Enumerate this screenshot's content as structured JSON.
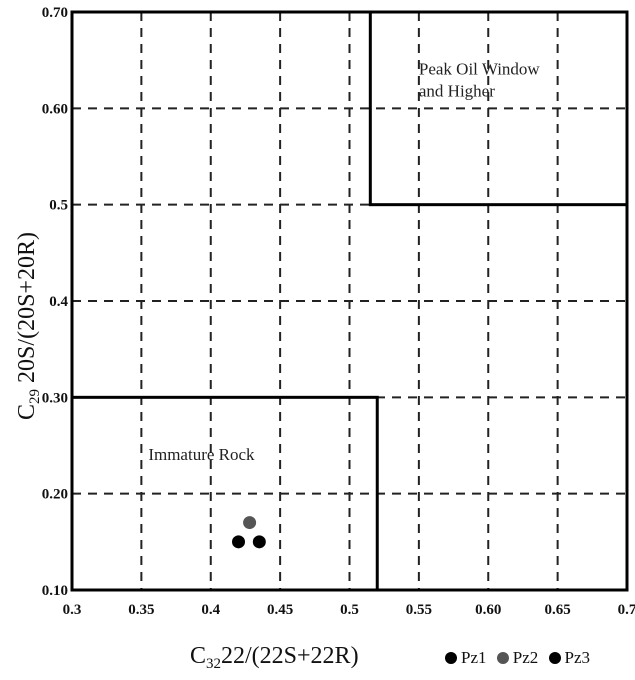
{
  "chart_data": {
    "type": "scatter",
    "title": "",
    "xlabel": {
      "prefix": "C",
      "subscript": "32",
      "text": "22/(22S+22R)"
    },
    "ylabel": {
      "prefix": "C",
      "subscript": "29",
      "text": "20S/(20S+20R)"
    },
    "xlim": [
      0.3,
      0.7
    ],
    "ylim": [
      0.1,
      0.7
    ],
    "x_ticks": [
      0.3,
      0.35,
      0.4,
      0.45,
      0.5,
      0.55,
      0.6,
      0.65,
      0.7
    ],
    "x_tick_labels": [
      "0.3",
      "0.35",
      "0.4",
      "0.45",
      "0.5",
      "0.55",
      "0.60",
      "0.65",
      "0.7"
    ],
    "y_ticks": [
      0.1,
      0.2,
      0.3,
      0.4,
      0.5,
      0.6,
      0.7
    ],
    "y_tick_labels": [
      "0.10",
      "0.20",
      "0.30",
      "0.4",
      "0.5",
      "0.60",
      "0.70"
    ],
    "grid": true,
    "series": [
      {
        "name": "Pz1",
        "color": "#000000",
        "points": [
          [
            0.42,
            0.15
          ]
        ]
      },
      {
        "name": "Pz2",
        "color": "#555555",
        "points": [
          [
            0.428,
            0.17
          ]
        ]
      },
      {
        "name": "Pz3",
        "color": "#000000",
        "points": [
          [
            0.435,
            0.15
          ]
        ]
      }
    ],
    "regions": [
      {
        "label_lines": [
          "Peak Oil Window",
          "and Higher"
        ],
        "x_range": [
          0.515,
          0.7
        ],
        "y_range": [
          0.5,
          0.7
        ],
        "label_at": [
          0.55,
          0.635
        ]
      },
      {
        "label_lines": [
          "Immature Rock"
        ],
        "x_range": [
          0.3,
          0.52
        ],
        "y_range": [
          0.1,
          0.3
        ],
        "label_at": [
          0.355,
          0.235
        ]
      }
    ],
    "legend_position": "bottom-right"
  }
}
